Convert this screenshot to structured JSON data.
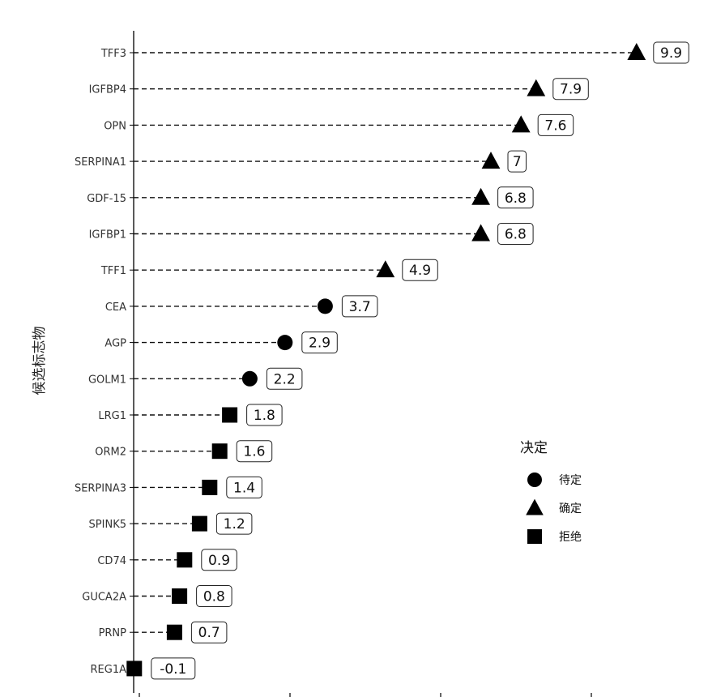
{
  "chart_data": {
    "type": "scatter",
    "ylabel": "候选标志物",
    "xlabel": "",
    "xlim": [
      -0.5,
      10.0
    ],
    "grid": false,
    "legend": {
      "title": "决定",
      "position": "right",
      "entries": [
        {
          "label": "待定",
          "shape": "circle"
        },
        {
          "label": "确定",
          "shape": "triangle"
        },
        {
          "label": "拒绝",
          "shape": "square"
        }
      ]
    },
    "points": [
      {
        "marker": "TFF3",
        "value": 9.9,
        "label": "9.9",
        "decision": "确定"
      },
      {
        "marker": "IGFBP4",
        "value": 7.9,
        "label": "7.9",
        "decision": "确定"
      },
      {
        "marker": "OPN",
        "value": 7.6,
        "label": "7.6",
        "decision": "确定"
      },
      {
        "marker": "SERPINA1",
        "value": 7.0,
        "label": "7",
        "decision": "确定"
      },
      {
        "marker": "GDF-15",
        "value": 6.8,
        "label": "6.8",
        "decision": "确定"
      },
      {
        "marker": "IGFBP1",
        "value": 6.8,
        "label": "6.8",
        "decision": "确定"
      },
      {
        "marker": "TFF1",
        "value": 4.9,
        "label": "4.9",
        "decision": "确定"
      },
      {
        "marker": "CEA",
        "value": 3.7,
        "label": "3.7",
        "decision": "待定"
      },
      {
        "marker": "AGP",
        "value": 2.9,
        "label": "2.9",
        "decision": "待定"
      },
      {
        "marker": "GOLM1",
        "value": 2.2,
        "label": "2.2",
        "decision": "待定"
      },
      {
        "marker": "LRG1",
        "value": 1.8,
        "label": "1.8",
        "decision": "拒绝"
      },
      {
        "marker": "ORM2",
        "value": 1.6,
        "label": "1.6",
        "decision": "拒绝"
      },
      {
        "marker": "SERPINA3",
        "value": 1.4,
        "label": "1.4",
        "decision": "拒绝"
      },
      {
        "marker": "SPINK5",
        "value": 1.2,
        "label": "1.2",
        "decision": "拒绝"
      },
      {
        "marker": "CD74",
        "value": 0.9,
        "label": "0.9",
        "decision": "拒绝"
      },
      {
        "marker": "GUCA2A",
        "value": 0.8,
        "label": "0.8",
        "decision": "拒绝"
      },
      {
        "marker": "PRNP",
        "value": 0.7,
        "label": "0.7",
        "decision": "拒绝"
      },
      {
        "marker": "REG1A",
        "value": -0.1,
        "label": "-0.1",
        "decision": "拒绝"
      }
    ]
  }
}
